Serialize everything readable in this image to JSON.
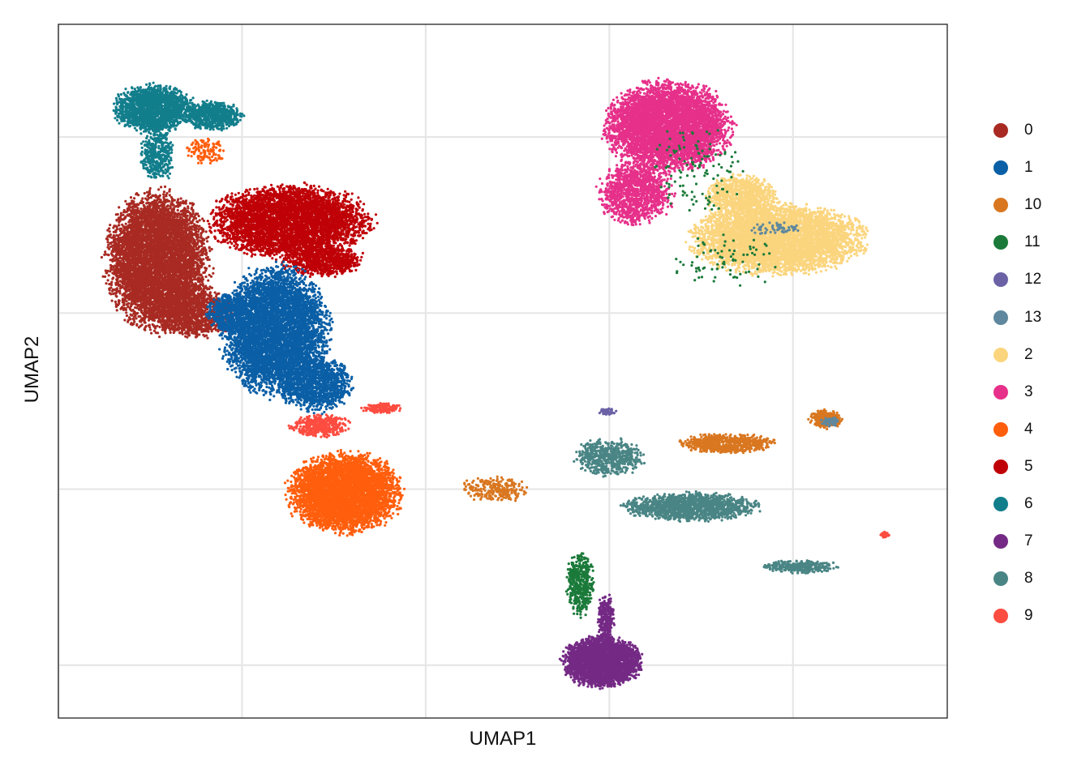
{
  "chart_data": {
    "type": "scatter",
    "title": "",
    "xlabel": "UMAP1",
    "ylabel": "UMAP2",
    "xlim": [
      -10,
      14.2
    ],
    "ylim": [
      -11.5,
      8.2
    ],
    "grid": true,
    "x_tick_labels_shown": false,
    "y_tick_labels_shown": false,
    "legend_position": "right",
    "legend": [
      {
        "label": "0",
        "color": "#A82A22"
      },
      {
        "label": "1",
        "color": "#0A5FA6"
      },
      {
        "label": "10",
        "color": "#D97720"
      },
      {
        "label": "11",
        "color": "#1B7A3A"
      },
      {
        "label": "12",
        "color": "#6B62A6"
      },
      {
        "label": "13",
        "color": "#5F889E"
      },
      {
        "label": "2",
        "color": "#FBD57E"
      },
      {
        "label": "3",
        "color": "#E6308A"
      },
      {
        "label": "4",
        "color": "#FF5E0D"
      },
      {
        "label": "5",
        "color": "#BF0007"
      },
      {
        "label": "6",
        "color": "#127E8C"
      },
      {
        "label": "7",
        "color": "#742A85"
      },
      {
        "label": "8",
        "color": "#4A8585"
      },
      {
        "label": "9",
        "color": "#FD4C40"
      }
    ],
    "clusters": [
      {
        "id": "6",
        "color": "#127E8C",
        "blobs": [
          [
            -7.4,
            5.8,
            1.2,
            0.75,
            1800
          ],
          [
            -5.8,
            5.6,
            0.9,
            0.45,
            700
          ],
          [
            -7.3,
            4.5,
            0.5,
            0.9,
            400
          ]
        ]
      },
      {
        "id": "0",
        "color": "#A82A22",
        "blobs": [
          [
            -7.3,
            1.5,
            1.55,
            2.2,
            6000
          ],
          [
            -6.3,
            0.0,
            1.2,
            0.8,
            1200
          ]
        ]
      },
      {
        "id": "5",
        "color": "#BF0007",
        "blobs": [
          [
            -3.7,
            2.6,
            2.4,
            1.15,
            4500
          ],
          [
            -2.8,
            1.5,
            1.2,
            0.5,
            800
          ]
        ]
      },
      {
        "id": "1",
        "color": "#0A5FA6",
        "blobs": [
          [
            -4.1,
            -0.5,
            1.6,
            2.0,
            5500
          ],
          [
            -3.0,
            -2.0,
            1.1,
            0.9,
            1200
          ],
          [
            -5.4,
            0.0,
            0.6,
            0.6,
            400
          ]
        ]
      },
      {
        "id": "9",
        "color": "#FD4C40",
        "blobs": [
          [
            -2.9,
            -3.2,
            0.9,
            0.35,
            450
          ],
          [
            -1.2,
            -2.7,
            0.6,
            0.15,
            150
          ],
          [
            12.5,
            -6.3,
            0.15,
            0.1,
            30
          ]
        ]
      },
      {
        "id": "4",
        "color": "#FF5E0D",
        "blobs": [
          [
            -2.2,
            -5.1,
            1.7,
            1.25,
            4500
          ],
          [
            -6.0,
            4.6,
            0.6,
            0.4,
            120
          ]
        ]
      },
      {
        "id": "3",
        "color": "#E6308A",
        "blobs": [
          [
            6.6,
            5.3,
            1.9,
            1.4,
            5000
          ],
          [
            5.7,
            3.4,
            1.1,
            1.0,
            1200
          ]
        ]
      },
      {
        "id": "2",
        "color": "#FBD57E",
        "blobs": [
          [
            9.6,
            2.1,
            2.6,
            1.1,
            5000
          ],
          [
            8.6,
            3.3,
            1.1,
            0.7,
            900
          ]
        ]
      },
      {
        "id": "7",
        "color": "#742A85",
        "blobs": [
          [
            4.8,
            -9.9,
            1.2,
            0.8,
            3000
          ],
          [
            4.9,
            -8.7,
            0.25,
            0.8,
            300
          ]
        ]
      },
      {
        "id": "8",
        "color": "#4A8585",
        "blobs": [
          [
            7.2,
            -5.5,
            2.0,
            0.45,
            1400
          ],
          [
            5.0,
            -4.1,
            1.0,
            0.6,
            600
          ],
          [
            10.2,
            -7.2,
            1.1,
            0.2,
            300
          ]
        ]
      },
      {
        "id": "10",
        "color": "#D97720",
        "blobs": [
          [
            8.2,
            -3.7,
            1.5,
            0.3,
            700
          ],
          [
            1.9,
            -5.0,
            1.0,
            0.4,
            250
          ],
          [
            10.9,
            -3.0,
            0.5,
            0.3,
            300
          ]
        ]
      },
      {
        "id": "11",
        "color": "#1B7A3A",
        "blobs": [
          [
            4.2,
            -7.7,
            0.4,
            1.0,
            450
          ],
          [
            7.4,
            4.0,
            1.5,
            1.5,
            120
          ],
          [
            8.2,
            1.5,
            1.8,
            0.8,
            80
          ]
        ]
      },
      {
        "id": "12",
        "color": "#6B62A6",
        "blobs": [
          [
            4.95,
            -2.8,
            0.25,
            0.1,
            60
          ]
        ]
      },
      {
        "id": "13",
        "color": "#5F889E",
        "blobs": [
          [
            11.0,
            -3.1,
            0.3,
            0.15,
            60
          ],
          [
            9.5,
            2.4,
            0.8,
            0.2,
            60
          ]
        ]
      }
    ]
  }
}
